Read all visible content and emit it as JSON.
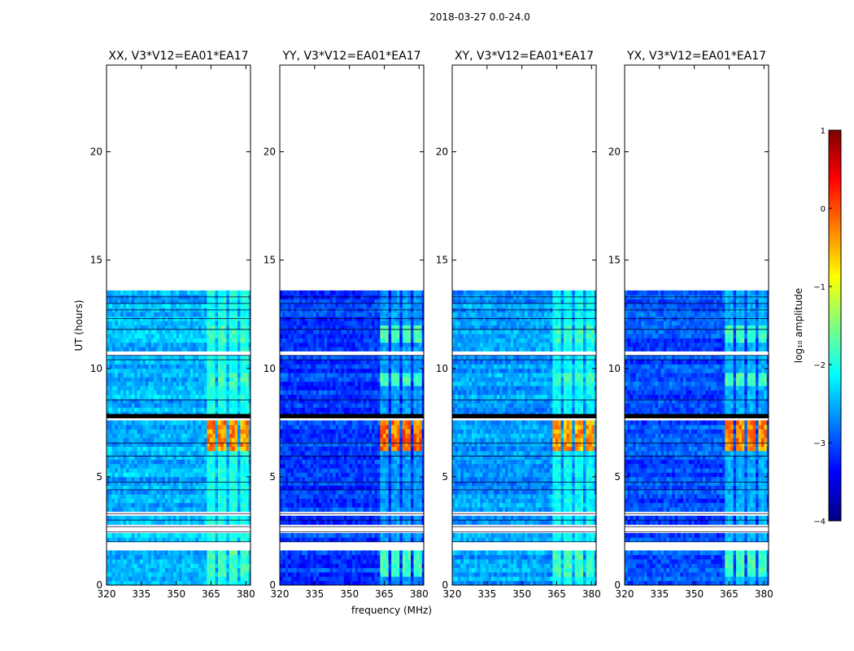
{
  "suptitle": "2018-03-27 0.0-24.0",
  "chart_data": [
    {
      "type": "heatmap",
      "title": "XX, V3*V12=EA01*EA17",
      "polarization": "XX",
      "xlabel": "frequency (MHz)",
      "ylabel": "UT (hours)",
      "xlim": [
        320,
        382
      ],
      "ylim": [
        0,
        24
      ],
      "xticks": [
        320,
        335,
        350,
        365,
        380
      ],
      "yticks": [
        0,
        5,
        10,
        15,
        20
      ],
      "data_extent_hours": [
        0,
        13.6
      ],
      "background_log_amplitude": -2.5,
      "rfi_channels_mhz": [
        [
          363.5,
          367.0
        ],
        [
          368.0,
          371.5
        ],
        [
          373.0,
          376.5
        ],
        [
          378.0,
          381.5
        ]
      ],
      "rfi_peak_window_hours": [
        6.2,
        7.7
      ],
      "rfi_peak_log_amplitude": -0.3
    },
    {
      "type": "heatmap",
      "title": "YY, V3*V12=EA01*EA17",
      "polarization": "YY",
      "xlabel": "frequency (MHz)",
      "ylabel": "UT (hours)",
      "xlim": [
        320,
        382
      ],
      "ylim": [
        0,
        24
      ],
      "xticks": [
        320,
        335,
        350,
        365,
        380
      ],
      "yticks": [
        0,
        5,
        10,
        15,
        20
      ],
      "data_extent_hours": [
        0,
        13.6
      ],
      "background_log_amplitude": -3.1,
      "rfi_channels_mhz": [
        [
          363.5,
          367.0
        ],
        [
          368.0,
          371.5
        ],
        [
          373.0,
          376.5
        ],
        [
          378.0,
          381.5
        ]
      ],
      "rfi_peak_window_hours": [
        6.2,
        7.7
      ],
      "rfi_peak_log_amplitude": -0.2
    },
    {
      "type": "heatmap",
      "title": "XY, V3*V12=EA01*EA17",
      "polarization": "XY",
      "xlabel": "frequency (MHz)",
      "ylabel": "UT (hours)",
      "xlim": [
        320,
        382
      ],
      "ylim": [
        0,
        24
      ],
      "xticks": [
        320,
        335,
        350,
        365,
        380
      ],
      "yticks": [
        0,
        5,
        10,
        15,
        20
      ],
      "data_extent_hours": [
        0,
        13.6
      ],
      "background_log_amplitude": -2.6,
      "rfi_channels_mhz": [
        [
          363.5,
          367.0
        ],
        [
          368.0,
          371.5
        ],
        [
          373.0,
          376.5
        ],
        [
          378.0,
          381.5
        ]
      ],
      "rfi_peak_window_hours": [
        6.2,
        7.7
      ],
      "rfi_peak_log_amplitude": -0.4
    },
    {
      "type": "heatmap",
      "title": "YX, V3*V12=EA01*EA17",
      "polarization": "YX",
      "xlabel": "frequency (MHz)",
      "ylabel": "UT (hours)",
      "xlim": [
        320,
        382
      ],
      "ylim": [
        0,
        24
      ],
      "xticks": [
        320,
        335,
        350,
        365,
        380
      ],
      "yticks": [
        0,
        5,
        10,
        15,
        20
      ],
      "data_extent_hours": [
        0,
        13.6
      ],
      "background_log_amplitude": -3.0,
      "rfi_channels_mhz": [
        [
          363.5,
          367.0
        ],
        [
          368.0,
          371.5
        ],
        [
          373.0,
          376.5
        ],
        [
          378.0,
          381.5
        ]
      ],
      "rfi_peak_window_hours": [
        6.2,
        7.7
      ],
      "rfi_peak_log_amplitude": -0.3
    }
  ],
  "flagged_rows_hours": [
    [
      1.6,
      1.95
    ],
    [
      2.0,
      2.05
    ],
    [
      2.45,
      2.5
    ],
    [
      2.7,
      2.75
    ],
    [
      3.0,
      3.05
    ],
    [
      3.3,
      3.35
    ],
    [
      4.4,
      4.45
    ],
    [
      4.75,
      4.8
    ],
    [
      5.95,
      6.0
    ],
    [
      6.55,
      6.6
    ],
    [
      7.7,
      7.85
    ],
    [
      8.55,
      8.6
    ],
    [
      10.4,
      10.45
    ],
    [
      10.6,
      10.7
    ],
    [
      11.8,
      11.85
    ],
    [
      12.3,
      12.35
    ],
    [
      12.7,
      12.75
    ],
    [
      13.0,
      13.05
    ],
    [
      13.3,
      13.35
    ]
  ],
  "colorbar": {
    "label": "log₁₀ amplitude",
    "min": -4,
    "max": 1,
    "ticks": [
      1,
      0,
      -1,
      -2,
      -3,
      -4
    ],
    "tick_labels": [
      "1",
      "0",
      "−1",
      "−2",
      "−3",
      "−4"
    ],
    "colormap": "jet",
    "colors": [
      "#00007f",
      "#0000ff",
      "#007fff",
      "#00ffff",
      "#7fff7f",
      "#ffff00",
      "#ff7f00",
      "#ff0000",
      "#7f0000"
    ]
  }
}
